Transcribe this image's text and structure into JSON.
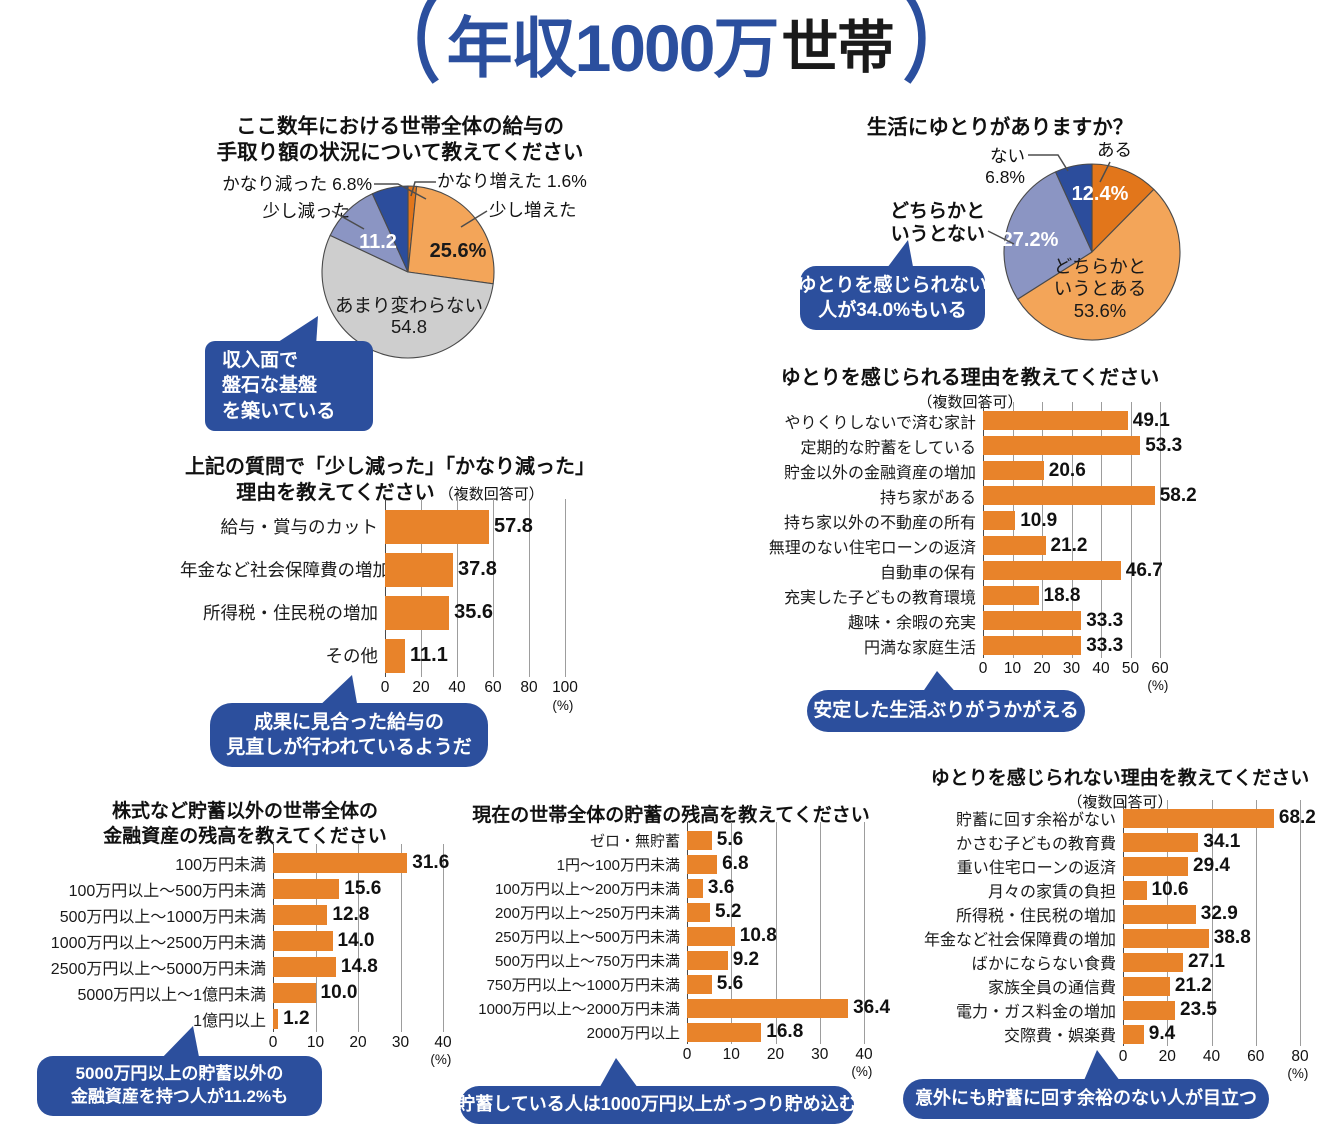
{
  "page_title": {
    "open": "（",
    "main": "年収1000万",
    "sub": "世帯",
    "close": "）"
  },
  "palette": {
    "accent_blue": "#2b4f9e",
    "bar_orange": "#e8832a",
    "pie_orange_dark": "#e2761b",
    "pie_orange_light": "#f3a559",
    "pie_gray": "#cecece",
    "pie_periwinkle": "#8b95c3",
    "pie_dark_blue": "#2c4d9c"
  },
  "chart_data": [
    {
      "type": "pie",
      "id": "pie-income-change",
      "title": "ここ数年における世帯全体の給与の手取り額の状況について教えてください",
      "title_lines": [
        "ここ数年における世帯全体の給与の",
        "手取り額の状況について教えてください"
      ],
      "slices": [
        {
          "label": "かなり増えた",
          "value": 1.6,
          "color": "#e2761b"
        },
        {
          "label": "少し増えた",
          "value": 25.6,
          "color": "#f3a559"
        },
        {
          "label": "あまり変わらない",
          "value": 54.8,
          "color": "#cecece"
        },
        {
          "label": "少し減った",
          "value": 11.2,
          "color": "#8b95c3"
        },
        {
          "label": "かなり減った",
          "value": 6.8,
          "color": "#2c4d9c"
        }
      ],
      "outside_labels": [
        "かなり減った 6.8%",
        "少し減った",
        "かなり増えた 1.6%",
        "少し増えた"
      ],
      "inside_labels": [
        "11.2",
        "25.6%",
        "あまり変わらない",
        "54.8"
      ],
      "callout": {
        "lines": [
          "収入面で",
          "盤石な基盤",
          "を築いている"
        ]
      }
    },
    {
      "type": "pie",
      "id": "pie-life-comfort",
      "title": "生活にゆとりがありますか？",
      "slices": [
        {
          "label": "ある",
          "value": 12.4,
          "color": "#e2761b"
        },
        {
          "label": "どちらかというとある",
          "value": 53.6,
          "color": "#f3a559"
        },
        {
          "label": "どちらかというとない",
          "value": 27.2,
          "color": "#8b95c3"
        },
        {
          "label": "ない",
          "value": 6.8,
          "color": "#2c4d9c"
        }
      ],
      "outside_labels": [
        "ない",
        "6.8%",
        "ある",
        "どちらかと",
        "いうとない"
      ],
      "inside_labels": [
        "12.4%",
        "27.2%",
        "どちらかと",
        "いうとある",
        "53.6%"
      ],
      "callout": {
        "lines": [
          "ゆとりを感じられない",
          "人が34.0%もいる"
        ]
      }
    },
    {
      "type": "bar",
      "id": "bar-decrease-reasons",
      "title_lines": [
        "上記の質問で「少し減った」「かなり減った」",
        "理由を教えてください"
      ],
      "note": "（複数回答可）",
      "categories": [
        "給与・賞与のカット",
        "年金など社会保障費の増加",
        "所得税・住民税の増加",
        "その他"
      ],
      "values": [
        57.8,
        37.8,
        35.6,
        11.1
      ],
      "value_labels": [
        "57.8",
        "37.8",
        "35.6",
        "11.1"
      ],
      "xmax": 100,
      "ticks": [
        0,
        20,
        40,
        60,
        80,
        100
      ],
      "unit": "(%)",
      "callout": {
        "lines": [
          "成果に見合った給与の",
          "見直しが行われているようだ"
        ]
      }
    },
    {
      "type": "bar",
      "id": "bar-comfort-reasons",
      "title_lines": [
        "ゆとりを感じられる理由を教えてください"
      ],
      "note": "（複数回答可）",
      "categories": [
        "やりくりしないで済む家計",
        "定期的な貯蓄をしている",
        "貯金以外の金融資産の増加",
        "持ち家がある",
        "持ち家以外の不動産の所有",
        "無理のない住宅ローンの返済",
        "自動車の保有",
        "充実した子どもの教育環境",
        "趣味・余暇の充実",
        "円満な家庭生活"
      ],
      "values": [
        49.1,
        53.3,
        20.6,
        58.2,
        10.9,
        21.2,
        46.7,
        18.8,
        33.3,
        33.3
      ],
      "value_labels": [
        "49.1",
        "53.3",
        "20.6",
        "58.2",
        "10.9",
        "21.2",
        "46.7",
        "18.8",
        "33.3",
        "33.3"
      ],
      "xmax": 60,
      "ticks": [
        0,
        10,
        20,
        30,
        40,
        50,
        60
      ],
      "unit": "(%)",
      "callout": {
        "lines": [
          "安定した生活ぶりがうかがえる"
        ]
      }
    },
    {
      "type": "bar",
      "id": "bar-financial-assets",
      "title_lines": [
        "株式など貯蓄以外の世帯全体の",
        "金融資産の残高を教えてください"
      ],
      "categories": [
        "100万円未満",
        "100万円以上～500万円未満",
        "500万円以上～1000万円未満",
        "1000万円以上～2500万円未満",
        "2500万円以上～5000万円未満",
        "5000万円以上～1億円未満",
        "1億円以上"
      ],
      "values": [
        31.6,
        15.6,
        12.8,
        14.0,
        14.8,
        10.0,
        1.2
      ],
      "value_labels": [
        "31.6",
        "15.6",
        "12.8",
        "14.0",
        "14.8",
        "10.0",
        "1.2"
      ],
      "xmax": 40,
      "ticks": [
        0,
        10,
        20,
        30,
        40
      ],
      "unit": "(%)",
      "callout": {
        "lines": [
          "5000万円以上の貯蓄以外の",
          "金融資産を持つ人が11.2%も"
        ]
      }
    },
    {
      "type": "bar",
      "id": "bar-savings-balance",
      "title_lines": [
        "現在の世帯全体の貯蓄の残高を教えてください"
      ],
      "categories": [
        "ゼロ・無貯蓄",
        "1円～100万円未満",
        "100万円以上～200万円未満",
        "200万円以上～250万円未満",
        "250万円以上～500万円未満",
        "500万円以上～750万円未満",
        "750万円以上～1000万円未満",
        "1000万円以上～2000万円未満",
        "2000万円以上"
      ],
      "values": [
        5.6,
        6.8,
        3.6,
        5.2,
        10.8,
        9.2,
        5.6,
        36.4,
        16.8
      ],
      "value_labels": [
        "5.6",
        "6.8",
        "3.6",
        "5.2",
        "10.8",
        "9.2",
        "5.6",
        "36.4",
        "16.8"
      ],
      "xmax": 40,
      "ticks": [
        0,
        10,
        20,
        30,
        40
      ],
      "unit": "(%)",
      "callout": {
        "lines": [
          "貯蓄している人は1000万円以上がっつり貯め込む"
        ]
      }
    },
    {
      "type": "bar",
      "id": "bar-no-comfort-reasons",
      "title_lines": [
        "ゆとりを感じられない理由を教えてください"
      ],
      "note": "（複数回答可）",
      "categories": [
        "貯蓄に回す余裕がない",
        "かさむ子どもの教育費",
        "重い住宅ローンの返済",
        "月々の家賃の負担",
        "所得税・住民税の増加",
        "年金など社会保障費の増加",
        "ばかにならない食費",
        "家族全員の通信費",
        "電力・ガス料金の増加",
        "交際費・娯楽費"
      ],
      "values": [
        68.2,
        34.1,
        29.4,
        10.6,
        32.9,
        38.8,
        27.1,
        21.2,
        23.5,
        9.4
      ],
      "value_labels": [
        "68.2",
        "34.1",
        "29.4",
        "10.6",
        "32.9",
        "38.8",
        "27.1",
        "21.2",
        "23.5",
        "9.4"
      ],
      "xmax": 80,
      "ticks": [
        0,
        20,
        40,
        60,
        80
      ],
      "unit": "(%)",
      "callout": {
        "lines": [
          "意外にも貯蓄に回す余裕のない人が目立つ"
        ]
      }
    }
  ]
}
